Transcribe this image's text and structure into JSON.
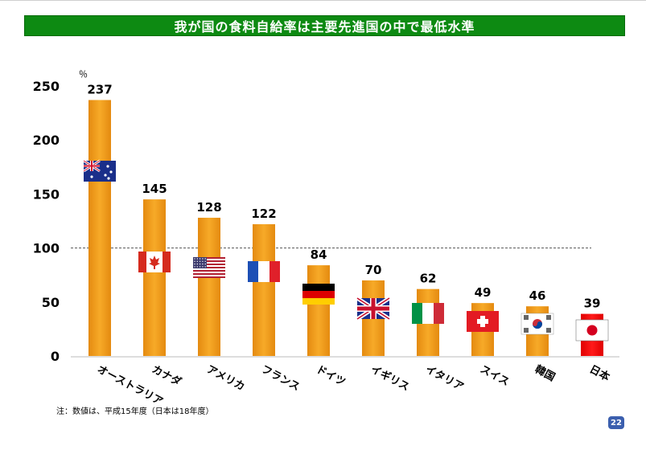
{
  "title": "我が国の食料自給率は主要先進国の中で最低水準",
  "footnote": "注：数値は、平成15年度（日本は18年度）",
  "page_number": "22",
  "chart_data": {
    "type": "bar",
    "categories": [
      "オーストラリア",
      "カナダ",
      "アメリカ",
      "フランス",
      "ドイツ",
      "イギリス",
      "イタリア",
      "スイス",
      "韓国",
      "日本"
    ],
    "values": [
      237,
      145,
      128,
      122,
      84,
      70,
      62,
      49,
      46,
      39
    ],
    "unit": "％",
    "ylim": [
      0,
      250
    ],
    "yticks": [
      "0",
      "50",
      "100",
      "150",
      "200",
      "250"
    ],
    "reference_line": 100,
    "grid": false,
    "flags": [
      "australia-flag",
      "canada-flag",
      "usa-flag",
      "france-flag",
      "germany-flag",
      "uk-flag",
      "italy-flag",
      "switzerland-flag",
      "korea-flag",
      "japan-flag"
    ],
    "colors": {
      "bar": "#f0a01e",
      "bar_dark": "#d97f0a",
      "japan_bar": "#ee1111",
      "reference_line": "#555555"
    }
  }
}
